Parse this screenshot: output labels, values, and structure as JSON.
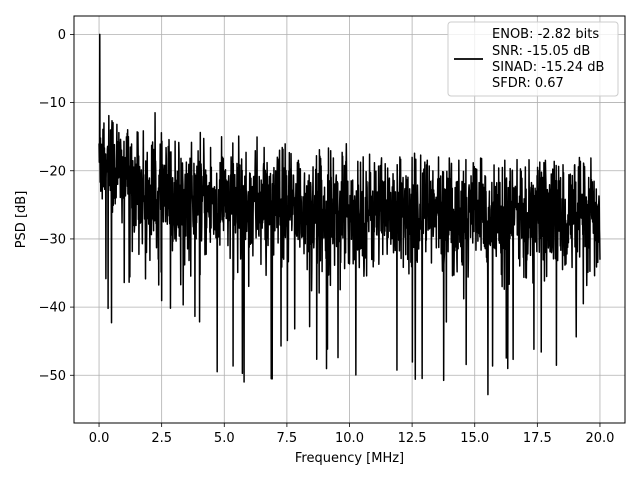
{
  "chart_data": {
    "type": "line",
    "xlabel": "Frequency [MHz]",
    "ylabel": "PSD [dB]",
    "xlim": [
      -1.0,
      21.0
    ],
    "ylim": [
      -57.0,
      2.7
    ],
    "xticks": [
      0.0,
      2.5,
      5.0,
      7.5,
      10.0,
      12.5,
      15.0,
      17.5,
      20.0
    ],
    "xtick_labels": [
      "0.0",
      "2.5",
      "5.0",
      "7.5",
      "10.0",
      "12.5",
      "15.0",
      "17.5",
      "20.0"
    ],
    "yticks": [
      0,
      -10,
      -20,
      -30,
      -40,
      -50
    ],
    "ytick_labels": [
      "0",
      "−10",
      "−20",
      "−30",
      "−40",
      "−50"
    ],
    "grid": true,
    "legend_position": "top-right",
    "legend_lines": [
      "ENOB: -2.82 bits",
      "SNR: -15.05 dB",
      "SINAD: -15.24 dB",
      "SFDR: 0.67"
    ],
    "series": [
      {
        "color": "#000000",
        "num_points": 2049,
        "x_range": [
          0.0,
          20.0
        ],
        "peak": {
          "x": 0.03,
          "y": 0.0
        },
        "envelope": [
          {
            "x": 0.0,
            "upper": -1,
            "lower": -18
          },
          {
            "x": 0.25,
            "upper": -9,
            "lower": -39
          },
          {
            "x": 0.5,
            "upper": -12,
            "lower": -46
          },
          {
            "x": 1.0,
            "upper": -14,
            "lower": -37
          },
          {
            "x": 2.2,
            "upper": -11,
            "lower": -38
          },
          {
            "x": 3.0,
            "upper": -14,
            "lower": -41
          },
          {
            "x": 5.0,
            "upper": -13,
            "lower": -51
          },
          {
            "x": 6.5,
            "upper": -15,
            "lower": -52
          },
          {
            "x": 8.0,
            "upper": -16,
            "lower": -48
          },
          {
            "x": 10.0,
            "upper": -16,
            "lower": -51
          },
          {
            "x": 11.2,
            "upper": -18,
            "lower": -52
          },
          {
            "x": 13.2,
            "upper": -17,
            "lower": -54
          },
          {
            "x": 15.8,
            "upper": -18,
            "lower": -53
          },
          {
            "x": 17.0,
            "upper": -18,
            "lower": -52
          },
          {
            "x": 18.5,
            "upper": -18,
            "lower": -51
          },
          {
            "x": 20.0,
            "upper": -17,
            "lower": -34
          }
        ],
        "median_level": [
          {
            "x": 0.0,
            "y": -17
          },
          {
            "x": 2.0,
            "y": -24
          },
          {
            "x": 10.0,
            "y": -26
          },
          {
            "x": 20.0,
            "y": -27
          }
        ]
      }
    ]
  }
}
